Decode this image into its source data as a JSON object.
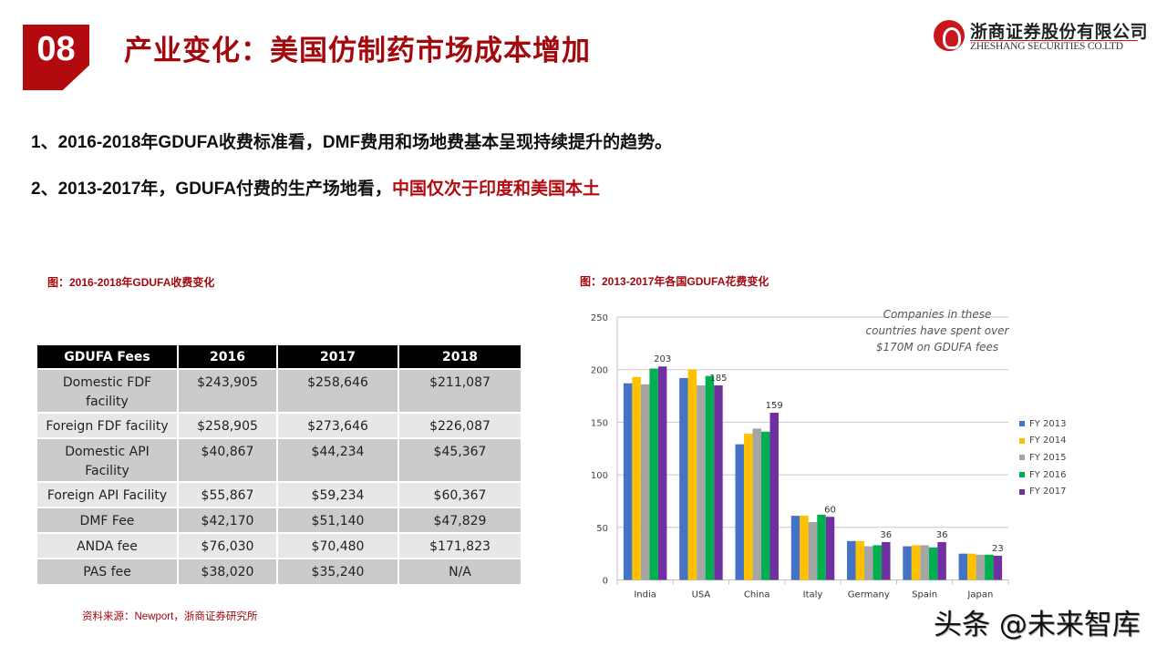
{
  "header": {
    "section_number": "08",
    "title": "产业变化：美国仿制药市场成本增加",
    "logo_cn": "浙商证券股份有限公司",
    "logo_en": "ZHESHANG SECURITIES CO.LTD"
  },
  "points": [
    {
      "text": "1、2016-2018年GDUFA收费标准看，DMF费用和场地费基本呈现持续提升的趋势。",
      "highlight": ""
    },
    {
      "text": "2、2013-2017年，GDUFA付费的生产场地看，",
      "highlight": "中国仅次于印度和美国本土"
    }
  ],
  "figure1": {
    "title": "图：2016-2018年GDUFA收费变化",
    "headers": [
      "GDUFA Fees",
      "2016",
      "2017",
      "2018"
    ],
    "rows": [
      {
        "label": "Domestic FDF facility",
        "values": [
          "$243,905",
          "$258,646",
          "$211,087"
        ]
      },
      {
        "label": "Foreign FDF facility",
        "values": [
          "$258,905",
          "$273,646",
          "$226,087"
        ]
      },
      {
        "label": "Domestic API Facility",
        "values": [
          "$40,867",
          "$44,234",
          "$45,367"
        ]
      },
      {
        "label": "Foreign API Facility",
        "values": [
          "$55,867",
          "$59,234",
          "$60,367"
        ]
      },
      {
        "label": "DMF Fee",
        "values": [
          "$42,170",
          "$51,140",
          "$47,829"
        ]
      },
      {
        "label": "ANDA fee",
        "values": [
          "$76,030",
          "$70,480",
          "$171,823"
        ]
      },
      {
        "label": "PAS fee",
        "values": [
          "$38,020",
          "$35,240",
          "N/A"
        ]
      }
    ],
    "source_prefix": "资料来源：",
    "source_en": "Newport",
    "source_suffix": "，浙商证券研究所"
  },
  "figure2": {
    "title": "图：2013-2017年各国GDUFA花费变化",
    "annotation": "Companies in these countries have spent over $170M on GDUFA fees"
  },
  "chart_data": {
    "type": "bar",
    "title": "图：2013-2017年各国GDUFA花费变化",
    "xlabel": "",
    "ylabel": "",
    "ylim": [
      0,
      250
    ],
    "yticks": [
      0,
      50,
      100,
      150,
      200,
      250
    ],
    "grid": true,
    "legend_position": "right",
    "categories": [
      "India",
      "USA",
      "China",
      "Italy",
      "Germany",
      "Spain",
      "Japan"
    ],
    "series": [
      {
        "name": "FY 2013",
        "color": "#4472c4",
        "values": [
          187,
          192,
          129,
          61,
          37,
          32,
          25
        ]
      },
      {
        "name": "FY 2014",
        "color": "#ffc000",
        "values": [
          193,
          200,
          139,
          61,
          37,
          33,
          25
        ]
      },
      {
        "name": "FY 2015",
        "color": "#a5a5a5",
        "values": [
          186,
          185,
          144,
          55,
          32,
          33,
          24
        ]
      },
      {
        "name": "FY 2016",
        "color": "#00b050",
        "values": [
          201,
          194,
          141,
          62,
          33,
          31,
          24
        ]
      },
      {
        "name": "FY 2017",
        "color": "#7030a0",
        "values": [
          203,
          185,
          159,
          60,
          36,
          36,
          23
        ]
      }
    ],
    "data_labels": {
      "series": "FY 2017",
      "values": [
        203,
        185,
        159,
        60,
        36,
        36,
        23
      ]
    },
    "annotation": "Companies in these countries have spent over $170M on GDUFA fees"
  },
  "watermark": "头条 @未来智库"
}
